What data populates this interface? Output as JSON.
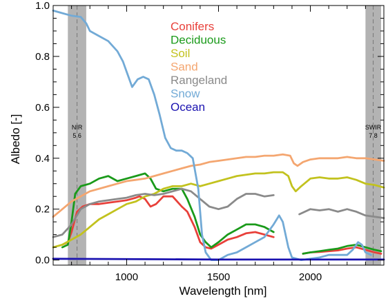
{
  "chart_data": {
    "type": "line",
    "xlabel": "Wavelength [nm]",
    "ylabel": "Albedo [-]",
    "xlim": [
      600,
      2400
    ],
    "ylim": [
      -0.02,
      1.0
    ],
    "xticks": [
      1000,
      1500,
      2000
    ],
    "yticks": [
      0.0,
      0.2,
      0.4,
      0.6,
      0.8,
      1.0
    ],
    "xtick_labels": [
      "1000",
      "1500",
      "2000"
    ],
    "ytick_labels": [
      "0.0",
      "0.2",
      "0.4",
      "0.6",
      "0.8",
      "1.0"
    ],
    "grid": false,
    "legend_position": "top-center",
    "bands": [
      {
        "x0": 680,
        "x1": 780,
        "center": 730,
        "label": "NIR",
        "sublabel": "5   6"
      },
      {
        "x0": 2300,
        "x1": 2385,
        "center": 2342,
        "label": "SWIR",
        "sublabel": "7   8"
      }
    ],
    "series": [
      {
        "name": "Conifers",
        "color": "#e8403a",
        "segments": [
          [
            [
              650,
              0.06
            ],
            [
              680,
              0.07
            ],
            [
              700,
              0.11
            ],
            [
              730,
              0.19
            ],
            [
              760,
              0.21
            ],
            [
              800,
              0.22
            ],
            [
              850,
              0.22
            ],
            [
              900,
              0.225
            ],
            [
              950,
              0.23
            ],
            [
              1000,
              0.235
            ],
            [
              1050,
              0.245
            ],
            [
              1070,
              0.25
            ],
            [
              1100,
              0.24
            ],
            [
              1130,
              0.21
            ],
            [
              1160,
              0.22
            ],
            [
              1200,
              0.25
            ],
            [
              1250,
              0.25
            ],
            [
              1300,
              0.21
            ],
            [
              1330,
              0.19
            ],
            [
              1370,
              0.13
            ],
            [
              1400,
              0.07
            ],
            [
              1430,
              0.05
            ],
            [
              1460,
              0.045
            ],
            [
              1500,
              0.06
            ],
            [
              1550,
              0.08
            ],
            [
              1600,
              0.09
            ],
            [
              1650,
              0.105
            ],
            [
              1700,
              0.11
            ],
            [
              1750,
              0.1
            ],
            [
              1800,
              0.09
            ]
          ],
          [
            [
              1960,
              0.025
            ],
            [
              2000,
              0.03
            ],
            [
              2050,
              0.032
            ],
            [
              2100,
              0.035
            ],
            [
              2150,
              0.038
            ],
            [
              2200,
              0.045
            ],
            [
              2250,
              0.05
            ],
            [
              2300,
              0.04
            ],
            [
              2350,
              0.03
            ],
            [
              2385,
              0.025
            ]
          ]
        ]
      },
      {
        "name": "Deciduous",
        "color": "#1a9a1a",
        "segments": [
          [
            [
              650,
              0.05
            ],
            [
              680,
              0.06
            ],
            [
              700,
              0.15
            ],
            [
              720,
              0.26
            ],
            [
              750,
              0.29
            ],
            [
              800,
              0.3
            ],
            [
              850,
              0.32
            ],
            [
              900,
              0.33
            ],
            [
              950,
              0.31
            ],
            [
              1000,
              0.32
            ],
            [
              1050,
              0.33
            ],
            [
              1100,
              0.34
            ],
            [
              1130,
              0.32
            ],
            [
              1160,
              0.28
            ],
            [
              1200,
              0.27
            ],
            [
              1250,
              0.28
            ],
            [
              1300,
              0.28
            ],
            [
              1330,
              0.24
            ],
            [
              1370,
              0.17
            ],
            [
              1400,
              0.1
            ],
            [
              1430,
              0.07
            ],
            [
              1460,
              0.05
            ],
            [
              1500,
              0.07
            ],
            [
              1550,
              0.1
            ],
            [
              1600,
              0.12
            ],
            [
              1650,
              0.14
            ],
            [
              1700,
              0.14
            ],
            [
              1750,
              0.13
            ],
            [
              1800,
              0.11
            ]
          ],
          [
            [
              1960,
              0.025
            ],
            [
              2000,
              0.03
            ],
            [
              2050,
              0.035
            ],
            [
              2100,
              0.04
            ],
            [
              2150,
              0.045
            ],
            [
              2200,
              0.055
            ],
            [
              2250,
              0.06
            ],
            [
              2300,
              0.05
            ],
            [
              2350,
              0.04
            ],
            [
              2385,
              0.035
            ]
          ]
        ]
      },
      {
        "name": "Soil",
        "color": "#c2c21e",
        "segments": [
          [
            [
              600,
              0.05
            ],
            [
              650,
              0.06
            ],
            [
              700,
              0.08
            ],
            [
              750,
              0.1
            ],
            [
              800,
              0.13
            ],
            [
              850,
              0.16
            ],
            [
              900,
              0.18
            ],
            [
              950,
              0.2
            ],
            [
              1000,
              0.22
            ],
            [
              1050,
              0.23
            ],
            [
              1100,
              0.25
            ],
            [
              1150,
              0.26
            ],
            [
              1200,
              0.28
            ],
            [
              1250,
              0.29
            ],
            [
              1300,
              0.29
            ],
            [
              1350,
              0.3
            ],
            [
              1400,
              0.29
            ],
            [
              1450,
              0.3
            ],
            [
              1500,
              0.31
            ],
            [
              1550,
              0.32
            ],
            [
              1600,
              0.33
            ],
            [
              1650,
              0.335
            ],
            [
              1700,
              0.34
            ],
            [
              1750,
              0.34
            ],
            [
              1800,
              0.345
            ],
            [
              1850,
              0.345
            ],
            [
              1880,
              0.33
            ],
            [
              1900,
              0.29
            ],
            [
              1920,
              0.27
            ],
            [
              1950,
              0.29
            ],
            [
              2000,
              0.32
            ],
            [
              2050,
              0.325
            ],
            [
              2100,
              0.32
            ],
            [
              2150,
              0.32
            ],
            [
              2200,
              0.325
            ],
            [
              2250,
              0.315
            ],
            [
              2300,
              0.3
            ],
            [
              2350,
              0.295
            ],
            [
              2400,
              0.285
            ]
          ]
        ]
      },
      {
        "name": "Sand",
        "color": "#f4a670",
        "segments": [
          [
            [
              600,
              0.17
            ],
            [
              650,
              0.2
            ],
            [
              700,
              0.23
            ],
            [
              750,
              0.25
            ],
            [
              800,
              0.27
            ],
            [
              850,
              0.28
            ],
            [
              900,
              0.29
            ],
            [
              950,
              0.3
            ],
            [
              1000,
              0.31
            ],
            [
              1050,
              0.315
            ],
            [
              1100,
              0.32
            ],
            [
              1150,
              0.33
            ],
            [
              1200,
              0.34
            ],
            [
              1250,
              0.35
            ],
            [
              1300,
              0.36
            ],
            [
              1350,
              0.37
            ],
            [
              1400,
              0.375
            ],
            [
              1450,
              0.385
            ],
            [
              1500,
              0.39
            ],
            [
              1550,
              0.395
            ],
            [
              1600,
              0.4
            ],
            [
              1650,
              0.405
            ],
            [
              1700,
              0.405
            ],
            [
              1750,
              0.41
            ],
            [
              1800,
              0.41
            ],
            [
              1850,
              0.415
            ],
            [
              1890,
              0.41
            ],
            [
              1910,
              0.38
            ],
            [
              1930,
              0.37
            ],
            [
              1960,
              0.385
            ],
            [
              2000,
              0.395
            ],
            [
              2050,
              0.4
            ],
            [
              2100,
              0.4
            ],
            [
              2150,
              0.4
            ],
            [
              2200,
              0.405
            ],
            [
              2250,
              0.4
            ],
            [
              2300,
              0.4
            ],
            [
              2350,
              0.395
            ],
            [
              2400,
              0.39
            ]
          ]
        ]
      },
      {
        "name": "Rangeland",
        "color": "#8a8a8a",
        "segments": [
          [
            [
              600,
              0.09
            ],
            [
              650,
              0.1
            ],
            [
              700,
              0.14
            ],
            [
              750,
              0.2
            ],
            [
              800,
              0.22
            ],
            [
              850,
              0.23
            ],
            [
              900,
              0.235
            ],
            [
              950,
              0.24
            ],
            [
              1000,
              0.245
            ],
            [
              1050,
              0.255
            ],
            [
              1100,
              0.26
            ],
            [
              1150,
              0.255
            ],
            [
              1200,
              0.26
            ],
            [
              1250,
              0.27
            ],
            [
              1300,
              0.28
            ],
            [
              1350,
              0.27
            ],
            [
              1400,
              0.24
            ],
            [
              1450,
              0.21
            ],
            [
              1500,
              0.2
            ],
            [
              1550,
              0.21
            ],
            [
              1600,
              0.24
            ],
            [
              1650,
              0.26
            ],
            [
              1700,
              0.26
            ],
            [
              1750,
              0.25
            ],
            [
              1800,
              0.255
            ]
          ],
          [
            [
              1940,
              0.18
            ],
            [
              2000,
              0.2
            ],
            [
              2050,
              0.195
            ],
            [
              2100,
              0.2
            ],
            [
              2150,
              0.19
            ],
            [
              2200,
              0.2
            ],
            [
              2250,
              0.19
            ],
            [
              2300,
              0.175
            ],
            [
              2350,
              0.17
            ],
            [
              2400,
              0.165
            ]
          ]
        ]
      },
      {
        "name": "Snow",
        "color": "#72aad6",
        "segments": [
          [
            [
              600,
              0.98
            ],
            [
              650,
              0.97
            ],
            [
              700,
              0.96
            ],
            [
              750,
              0.955
            ],
            [
              780,
              0.93
            ],
            [
              800,
              0.9
            ],
            [
              850,
              0.88
            ],
            [
              900,
              0.86
            ],
            [
              950,
              0.82
            ],
            [
              980,
              0.78
            ],
            [
              1000,
              0.74
            ],
            [
              1030,
              0.68
            ],
            [
              1060,
              0.71
            ],
            [
              1090,
              0.72
            ],
            [
              1120,
              0.71
            ],
            [
              1150,
              0.65
            ],
            [
              1180,
              0.57
            ],
            [
              1210,
              0.48
            ],
            [
              1240,
              0.44
            ],
            [
              1270,
              0.43
            ],
            [
              1300,
              0.43
            ],
            [
              1330,
              0.42
            ],
            [
              1360,
              0.4
            ],
            [
              1390,
              0.28
            ],
            [
              1410,
              0.1
            ],
            [
              1430,
              0.03
            ],
            [
              1460,
              0.0
            ],
            [
              1500,
              0.0
            ],
            [
              1550,
              0.02
            ],
            [
              1600,
              0.03
            ],
            [
              1650,
              0.05
            ],
            [
              1700,
              0.07
            ],
            [
              1750,
              0.09
            ],
            [
              1800,
              0.14
            ],
            [
              1830,
              0.175
            ],
            [
              1850,
              0.15
            ],
            [
              1880,
              0.05
            ],
            [
              1900,
              0.01
            ],
            [
              1950,
              0.0
            ],
            [
              2000,
              0.005
            ],
            [
              2050,
              0.01
            ],
            [
              2100,
              0.02
            ],
            [
              2150,
              0.02
            ],
            [
              2200,
              0.02
            ],
            [
              2230,
              0.04
            ],
            [
              2260,
              0.07
            ],
            [
              2280,
              0.06
            ],
            [
              2300,
              0.03
            ],
            [
              2330,
              0.02
            ]
          ]
        ]
      },
      {
        "name": "Ocean",
        "color": "#1a12b0",
        "segments": [
          [
            [
              600,
              0.005
            ],
            [
              900,
              0.004
            ],
            [
              1200,
              0.003
            ],
            [
              1500,
              0.002
            ],
            [
              1800,
              0.002
            ],
            [
              2100,
              0.002
            ],
            [
              2400,
              0.002
            ]
          ]
        ]
      }
    ]
  }
}
